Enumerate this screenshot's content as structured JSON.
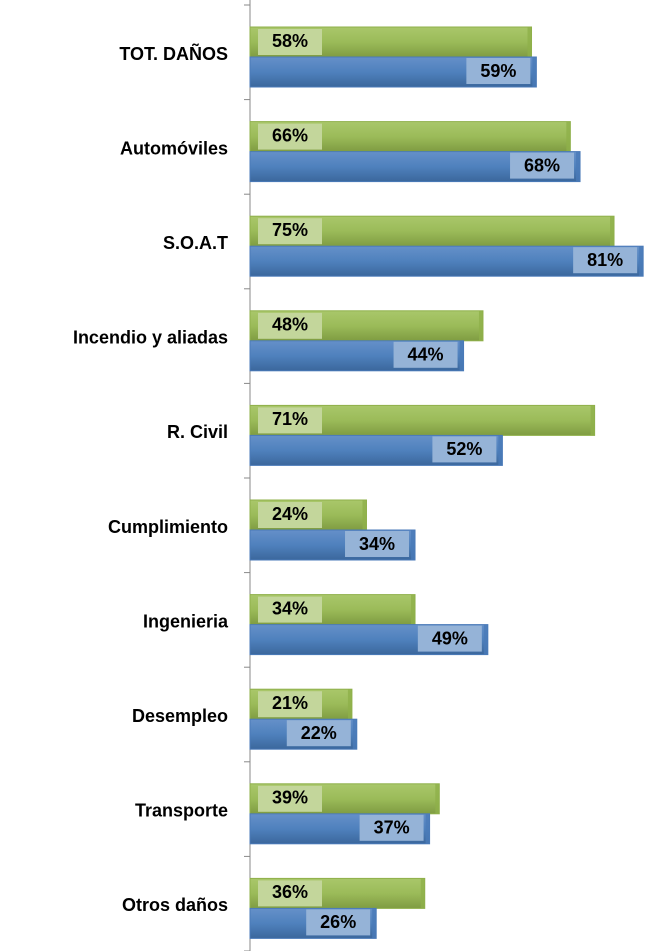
{
  "chart_data": {
    "type": "bar",
    "orientation": "horizontal",
    "categories": [
      "TOT. DAÑOS",
      "Automóviles",
      "S.O.A.T",
      "Incendio y aliadas",
      "R. Civil",
      "Cumplimiento",
      "Ingenieria",
      "Desempleo",
      "Transporte",
      "Otros daños"
    ],
    "series": [
      {
        "color": "#8fb04a",
        "values": [
          58,
          66,
          75,
          48,
          71,
          24,
          34,
          21,
          39,
          36
        ],
        "value_labels": [
          "58%",
          "66%",
          "75%",
          "48%",
          "71%",
          "24%",
          "34%",
          "21%",
          "39%",
          "36%"
        ]
      },
      {
        "color": "#4a7ab8",
        "values": [
          59,
          68,
          81,
          44,
          52,
          34,
          49,
          22,
          37,
          26
        ],
        "value_labels": [
          "59%",
          "68%",
          "81%",
          "44%",
          "52%",
          "34%",
          "49%",
          "22%",
          "37%",
          "26%"
        ]
      }
    ],
    "xlim": [
      0,
      82
    ]
  }
}
